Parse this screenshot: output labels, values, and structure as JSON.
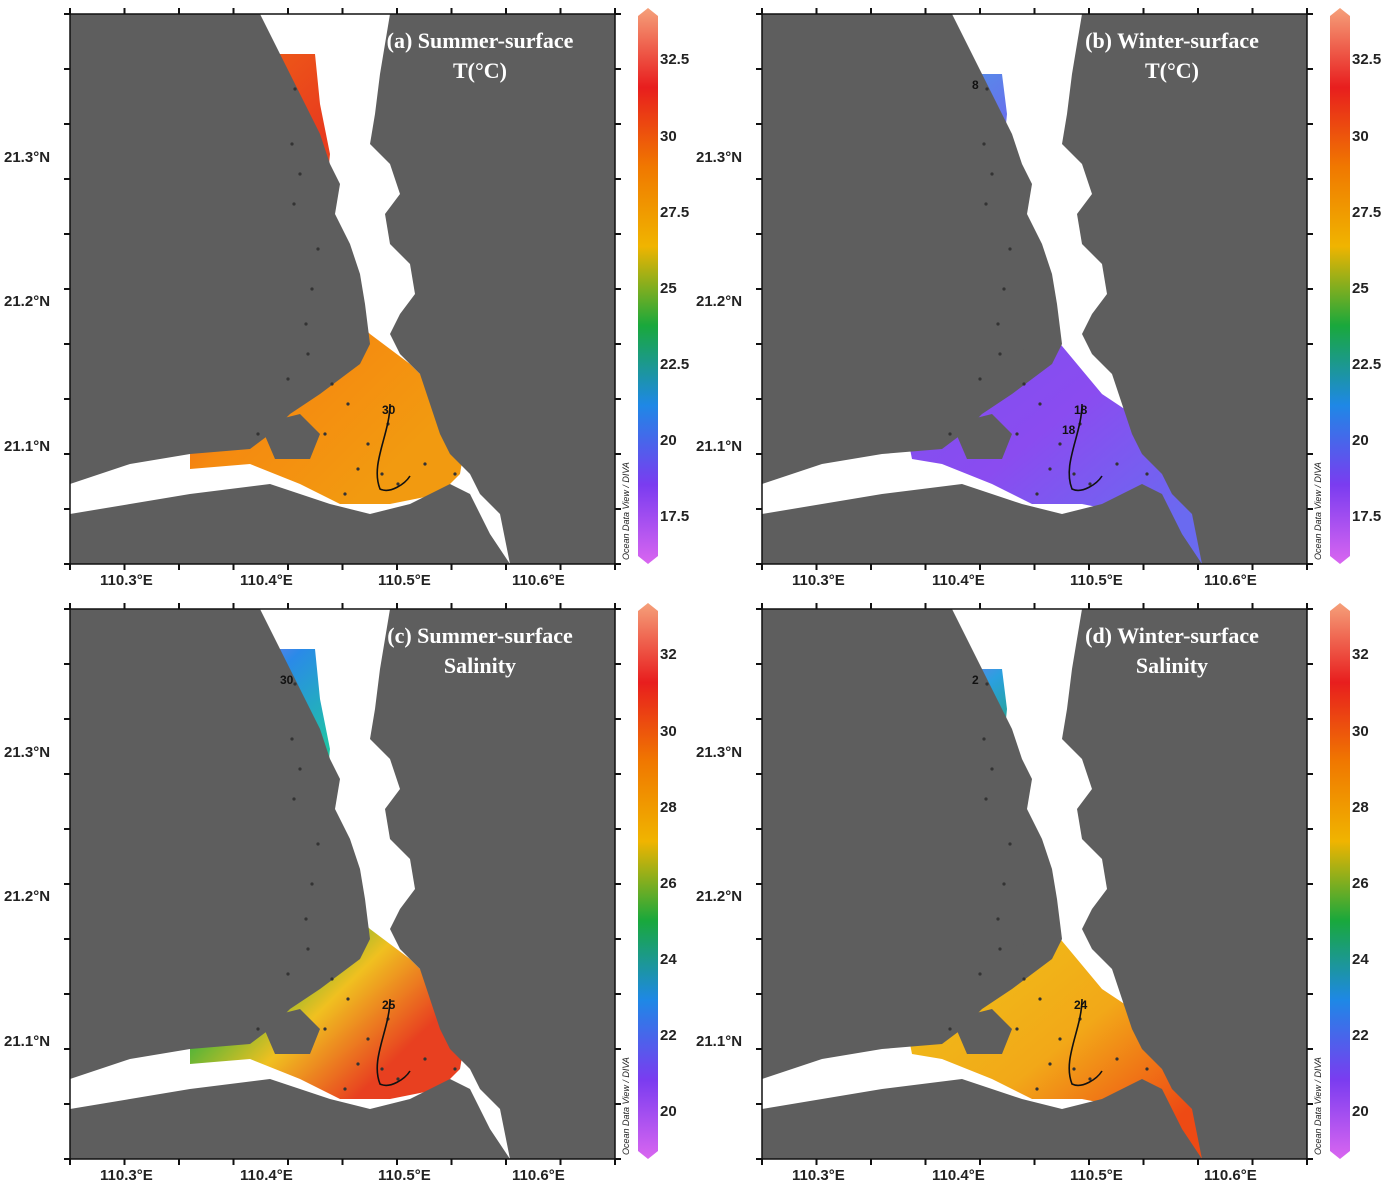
{
  "panels": [
    {
      "id": "a",
      "title_line1": "(a) Summer-surface",
      "title_line2": "T(°C)",
      "lat_labels": [
        "21.3°N",
        "21.2°N",
        "21.1°N"
      ],
      "lon_labels": [
        "110.3°E",
        "110.4°E",
        "110.5°E",
        "110.6°E"
      ],
      "contour_labels": [
        "30"
      ],
      "colorbar_ticks": [
        "32.5",
        "30",
        "27.5",
        "25",
        "22.5",
        "20",
        "17.5"
      ],
      "credit": "Ocean Data View / DIVA"
    },
    {
      "id": "b",
      "title_line1": "(b) Winter-surface",
      "title_line2": "T(°C)",
      "lat_labels": [
        "21.3°N",
        "21.2°N",
        "21.1°N"
      ],
      "lon_labels": [
        "110.3°E",
        "110.4°E",
        "110.5°E",
        "110.6°E"
      ],
      "contour_labels": [
        "18",
        "8",
        "18"
      ],
      "colorbar_ticks": [
        "32.5",
        "30",
        "27.5",
        "25",
        "22.5",
        "20",
        "17.5"
      ],
      "credit": "Ocean Data View / DIVA"
    },
    {
      "id": "c",
      "title_line1": "(c) Summer-surface",
      "title_line2": "Salinity",
      "lat_labels": [
        "21.3°N",
        "21.2°N",
        "21.1°N"
      ],
      "lon_labels": [
        "110.3°E",
        "110.4°E",
        "110.5°E",
        "110.6°E"
      ],
      "contour_labels": [
        "25",
        "30"
      ],
      "colorbar_ticks": [
        "32",
        "30",
        "28",
        "26",
        "24",
        "22",
        "20"
      ],
      "credit": "Ocean Data View / DIVA"
    },
    {
      "id": "d",
      "title_line1": "(d) Winter-surface",
      "title_line2": "Salinity",
      "lat_labels": [
        "21.3°N",
        "21.2°N",
        "21.1°N"
      ],
      "lon_labels": [
        "110.3°E",
        "110.4°E",
        "110.5°E",
        "110.6°E"
      ],
      "contour_labels": [
        "24",
        "2"
      ],
      "colorbar_ticks": [
        "32",
        "30",
        "28",
        "26",
        "24",
        "22",
        "20"
      ],
      "credit": "Ocean Data View / DIVA"
    }
  ],
  "colors": {
    "land": "#5e5e5e",
    "no_data_water": "#ffffff",
    "colorbar_stops": [
      "#d966f0",
      "#7a3cf0",
      "#1e88e6",
      "#19a83c",
      "#f0b400",
      "#f07800",
      "#e81e1e",
      "#f5a07a"
    ]
  }
}
